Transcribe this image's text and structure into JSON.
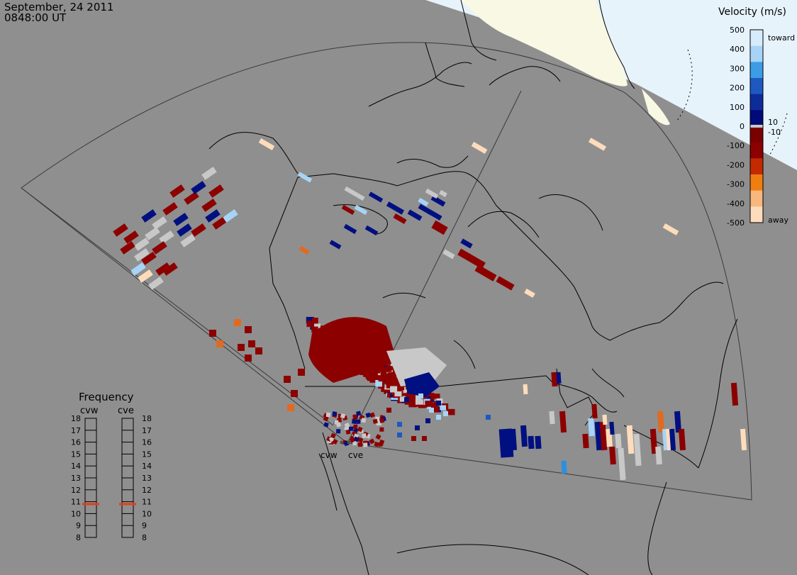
{
  "header": {
    "date": "September, 24 2011",
    "time": "0848:00 UT"
  },
  "colorbar": {
    "title": "Velocity (m/s)",
    "toward_label": "toward",
    "away_label": "away",
    "ticks": [
      "500",
      "400",
      "300",
      "200",
      "100",
      "0",
      "-100",
      "-200",
      "-300",
      "-400",
      "-500"
    ],
    "inner_labels": [
      "10",
      "-10"
    ],
    "stops": [
      {
        "v": 500,
        "color": "#d6ecfb"
      },
      {
        "v": 400,
        "color": "#a7d4f6"
      },
      {
        "v": 300,
        "color": "#3c9ce6"
      },
      {
        "v": 200,
        "color": "#1d59c0"
      },
      {
        "v": 100,
        "color": "#0e2b9a"
      },
      {
        "v": 10,
        "color": "#000a78"
      },
      {
        "v": -10,
        "color": "#7a0000"
      },
      {
        "v": -100,
        "color": "#8c0000"
      },
      {
        "v": -200,
        "color": "#c42a00"
      },
      {
        "v": -300,
        "color": "#f07d10"
      },
      {
        "v": -400,
        "color": "#f7b77d"
      },
      {
        "v": -500,
        "color": "#fddcbc"
      }
    ],
    "ground_scatter_color": "#c8c8c8"
  },
  "frequency": {
    "title": "Frequency",
    "radars": [
      "cvw",
      "cve"
    ],
    "ticks": [
      "18",
      "17",
      "16",
      "15",
      "14",
      "13",
      "12",
      "11",
      "10",
      "9",
      "8"
    ],
    "values_mhz": [
      10.8,
      10.8
    ],
    "marker_color": "#e0401a"
  },
  "radar_sites": [
    "cvw",
    "cve"
  ],
  "colors": {
    "background": "#8f8f8f",
    "daylight": "#fafae8",
    "sunlit_sea": "#e6f3fb",
    "coast": "#000000"
  }
}
